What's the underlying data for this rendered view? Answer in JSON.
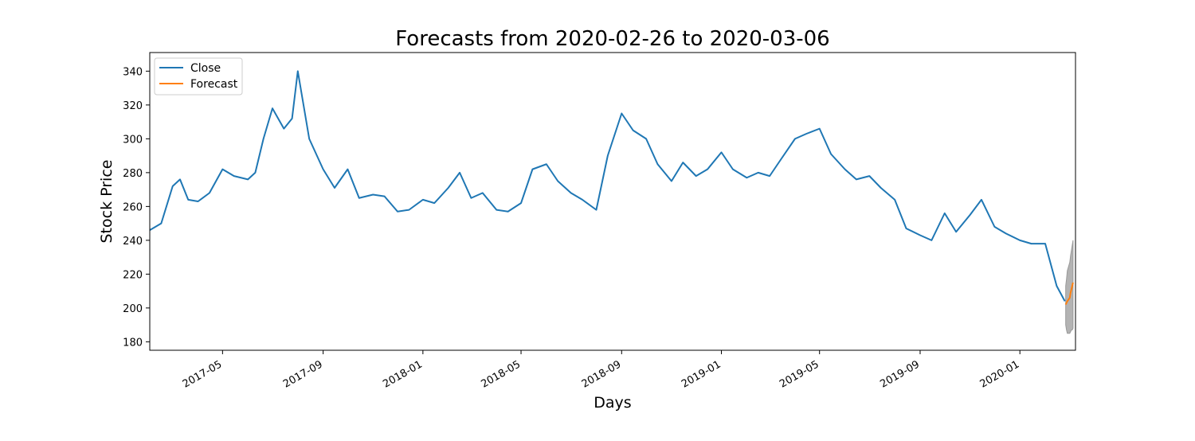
{
  "chart_data": {
    "type": "line",
    "title": "Forecasts from 2020-02-26 to 2020-03-06",
    "xlabel": "Days",
    "ylabel": "Stock Price",
    "xlim": [
      "2017-02-01",
      "2020-03-09"
    ],
    "ylim": [
      175,
      351
    ],
    "grid": false,
    "legend_position": "top-left",
    "y_ticks": [
      180,
      200,
      220,
      240,
      260,
      280,
      300,
      320,
      340
    ],
    "x_ticks": [
      "2017-05",
      "2017-09",
      "2018-01",
      "2018-05",
      "2018-09",
      "2019-01",
      "2019-05",
      "2019-09",
      "2020-01"
    ],
    "colors": {
      "close": "#1f77b4",
      "forecast": "#ff7f0e",
      "confidence_band": "#b3b3b3"
    },
    "series": [
      {
        "name": "Close",
        "x": [
          "2017-02-01",
          "2017-02-15",
          "2017-03-01",
          "2017-03-10",
          "2017-03-20",
          "2017-04-01",
          "2017-04-15",
          "2017-05-01",
          "2017-05-15",
          "2017-06-01",
          "2017-06-10",
          "2017-06-20",
          "2017-07-01",
          "2017-07-15",
          "2017-07-25",
          "2017-08-01",
          "2017-08-15",
          "2017-09-01",
          "2017-09-15",
          "2017-10-01",
          "2017-10-15",
          "2017-11-01",
          "2017-11-15",
          "2017-12-01",
          "2017-12-15",
          "2018-01-01",
          "2018-01-15",
          "2018-02-01",
          "2018-02-15",
          "2018-03-01",
          "2018-03-15",
          "2018-04-01",
          "2018-04-15",
          "2018-05-01",
          "2018-05-15",
          "2018-06-01",
          "2018-06-15",
          "2018-07-01",
          "2018-07-15",
          "2018-08-01",
          "2018-08-15",
          "2018-09-01",
          "2018-09-15",
          "2018-10-01",
          "2018-10-15",
          "2018-11-01",
          "2018-11-15",
          "2018-12-01",
          "2018-12-15",
          "2019-01-01",
          "2019-01-15",
          "2019-02-01",
          "2019-02-15",
          "2019-03-01",
          "2019-03-15",
          "2019-04-01",
          "2019-04-15",
          "2019-05-01",
          "2019-05-15",
          "2019-06-01",
          "2019-06-15",
          "2019-07-01",
          "2019-07-15",
          "2019-08-01",
          "2019-08-15",
          "2019-09-01",
          "2019-09-15",
          "2019-10-01",
          "2019-10-15",
          "2019-11-01",
          "2019-11-15",
          "2019-12-01",
          "2019-12-15",
          "2020-01-01",
          "2020-01-15",
          "2020-02-01",
          "2020-02-15",
          "2020-02-25"
        ],
        "values": [
          246,
          250,
          272,
          276,
          264,
          263,
          268,
          282,
          278,
          276,
          280,
          300,
          318,
          306,
          312,
          340,
          300,
          282,
          271,
          282,
          265,
          267,
          266,
          257,
          258,
          264,
          262,
          271,
          280,
          265,
          268,
          258,
          257,
          262,
          282,
          285,
          275,
          268,
          264,
          258,
          290,
          315,
          305,
          300,
          285,
          275,
          286,
          278,
          282,
          292,
          282,
          277,
          280,
          278,
          288,
          300,
          303,
          306,
          291,
          282,
          276,
          278,
          271,
          264,
          247,
          243,
          240,
          256,
          245,
          255,
          264,
          248,
          244,
          240,
          238,
          238,
          213,
          204
        ],
        "x_format": "date"
      },
      {
        "name": "Forecast",
        "x": [
          "2020-02-26",
          "2020-02-27",
          "2020-02-28",
          "2020-03-02",
          "2020-03-03",
          "2020-03-04",
          "2020-03-05",
          "2020-03-06"
        ],
        "values": [
          202,
          203,
          204,
          206,
          209,
          211,
          213,
          215
        ],
        "lower": [
          190,
          187,
          185,
          185,
          186,
          187,
          187,
          188
        ],
        "upper": [
          213,
          217,
          222,
          227,
          231,
          234,
          237,
          240
        ]
      }
    ]
  }
}
